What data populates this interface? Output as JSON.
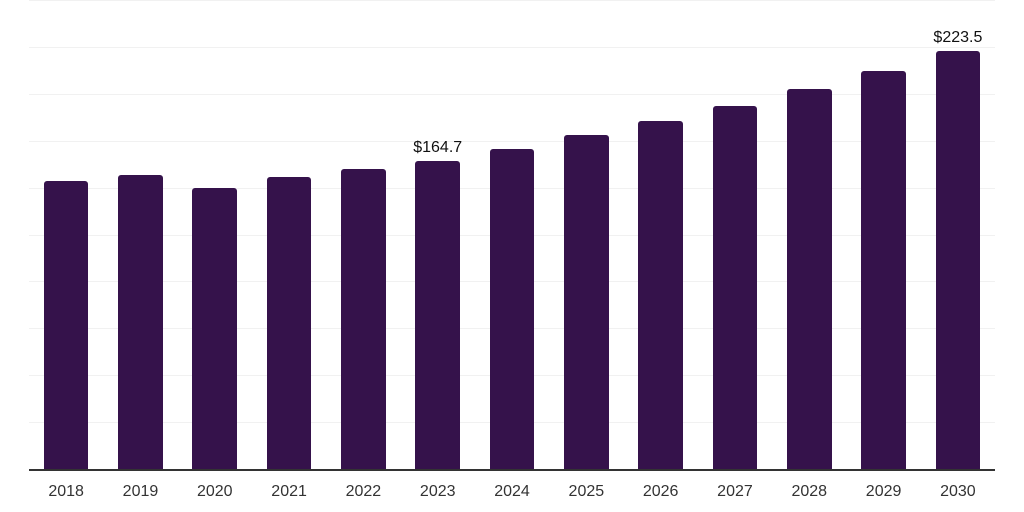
{
  "chart_data": {
    "type": "bar",
    "title": "",
    "xlabel": "",
    "ylabel": "",
    "categories": [
      "2018",
      "2019",
      "2020",
      "2021",
      "2022",
      "2023",
      "2024",
      "2025",
      "2026",
      "2027",
      "2028",
      "2029",
      "2030"
    ],
    "values": [
      153.8,
      157.2,
      150.4,
      156.3,
      160.3,
      164.7,
      171.0,
      178.8,
      186.2,
      194.0,
      202.9,
      212.8,
      223.5
    ],
    "data_labels": {
      "2023": "$164.7",
      "2030": "$223.5"
    },
    "ylim": [
      0,
      250
    ],
    "grid_step": 25,
    "grid": true,
    "legend": false,
    "colors": {
      "bar": "#35124b",
      "gridline": "#f1f1f1",
      "axis_line": "#333333",
      "x_tick_label": "#333333",
      "data_label": "#111111",
      "background": "#ffffff"
    }
  }
}
